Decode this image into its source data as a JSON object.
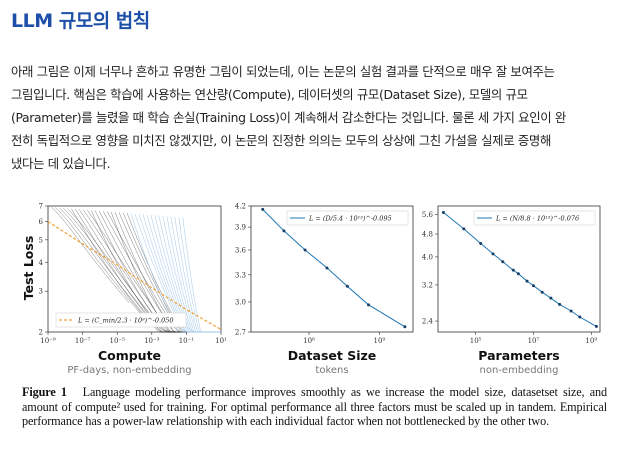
{
  "article": {
    "title": "LLM 규모의 법칙",
    "paragraph_lines": [
      "아래 그림은 이제 너무나 흔하고 유명한 그림이 되었는데, 이는 논문의 실험 결과를 단적으로 매우 잘 보여주는",
      "그림입니다. 핵심은 학습에 사용하는 연산량(Compute), 데이터셋의 규모(Dataset Size), 모델의 규모",
      "(Parameter)를 늘렸을 때 학습 손실(Training Loss)이 계속해서 감소한다는 것입니다. 물론 세 가지 요인이 완",
      "전히 독립적으로 영향을 미치진 않겠지만, 이 논문의 진정한 의의는 모두의 상상에 그친 가설을 실제로 증명해",
      "냈다는 데 있습니다."
    ]
  },
  "figure": {
    "caption_label": "Figure 1",
    "caption_text": "Language modeling performance improves smoothly as we increase the model size, datasetset size, and amount of compute² used for training. For optimal performance all three factors must be scaled up in tandem. Empirical performance has a power-law relationship with each individual factor when not bottlenecked by the other two.",
    "colors": {
      "line": "#1f77b4",
      "fit": "#f0a030",
      "curves": "#9ec5e8"
    }
  },
  "chart_data": [
    {
      "type": "line",
      "title": "",
      "xlabel": "Compute",
      "xsublabel": "PF-days, non-embedding",
      "ylabel": "Test Loss",
      "x_scale": "log",
      "y_scale": "log",
      "xlim": [
        1e-09,
        10
      ],
      "ylim": [
        2,
        7
      ],
      "x_ticks": [
        "10⁻⁹",
        "10⁻⁷",
        "10⁻⁵",
        "10⁻³",
        "10⁻¹",
        "10¹"
      ],
      "y_ticks": [
        "2",
        "3",
        "4",
        "5",
        "6",
        "7"
      ],
      "legend": "L = (C_min/2.3 · 10⁸)^-0.050",
      "legend_position": "bottom-left",
      "series": [
        {
          "name": "L = (C_min/2.3 · 10⁸)^-0.050",
          "x": [
            1e-09,
            1e-07,
            1e-05,
            0.001,
            0.1,
            10
          ],
          "y": [
            6.0,
            4.8,
            3.9,
            3.1,
            2.5,
            2.05
          ]
        }
      ]
    },
    {
      "type": "line",
      "title": "",
      "xlabel": "Dataset Size",
      "xsublabel": "tokens",
      "x_scale": "log",
      "y_scale": "log",
      "xlim": [
        15000000.0,
        3000000000.0
      ],
      "ylim": [
        2.7,
        4.2
      ],
      "x_ticks": [
        "10⁸",
        "10⁹"
      ],
      "y_ticks": [
        "2.7",
        "3.0",
        "3.3",
        "3.6",
        "3.9",
        "4.2"
      ],
      "legend": "L = (D/5.4 · 10¹³)^-0.095",
      "legend_position": "top-right",
      "series": [
        {
          "name": "L = (D/5.4 · 10¹³)^-0.095",
          "x": [
            22000000.0,
            44000000.0,
            88000000.0,
            180000000.0,
            350000000.0,
            700000000.0,
            2300000000.0
          ],
          "y": [
            4.15,
            3.85,
            3.6,
            3.38,
            3.17,
            2.97,
            2.75
          ]
        }
      ]
    },
    {
      "type": "line",
      "title": "",
      "xlabel": "Parameters",
      "xsublabel": "non-embedding",
      "x_scale": "log",
      "y_scale": "log",
      "xlim": [
        5000.0,
        2000000000.0
      ],
      "ylim": [
        2.2,
        6.0
      ],
      "x_ticks": [
        "10⁵",
        "10⁷",
        "10⁹"
      ],
      "y_ticks": [
        "2.4",
        "3.2",
        "4.0",
        "4.8",
        "5.6"
      ],
      "legend": "L = (N/8.8 · 10¹³)^-0.076",
      "legend_position": "top-right",
      "series": [
        {
          "name": "L = (N/8.8 · 10¹³)^-0.076",
          "x": [
            7700.0,
            39000.0,
            150000.0,
            400000.0,
            870000.0,
            2000000.0,
            3000000.0,
            6000000.0,
            10000000.0,
            20000000.0,
            40000000.0,
            80000000.0,
            200000000.0,
            400000000.0,
            1500000000.0
          ],
          "y": [
            5.7,
            5.0,
            4.45,
            4.1,
            3.85,
            3.6,
            3.5,
            3.3,
            3.18,
            3.02,
            2.88,
            2.74,
            2.6,
            2.48,
            2.3
          ]
        }
      ]
    }
  ]
}
